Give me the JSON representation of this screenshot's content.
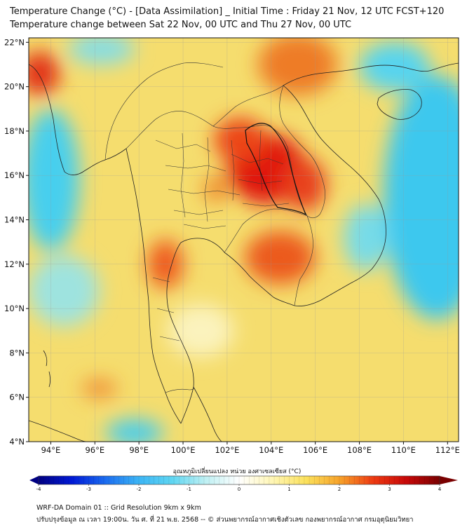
{
  "title": {
    "line1": "Temperature Change (°C) - [Data Assimilation] _ Initial Time : Friday 21 Nov, 12 UTC FCST+120",
    "line2": "Temperature change between Sat 22 Nov, 00 UTC and Thu 27 Nov, 00 UTC"
  },
  "map": {
    "lat_labels": [
      "4°N",
      "6°N",
      "8°N",
      "10°N",
      "12°N",
      "14°N",
      "16°N",
      "18°N",
      "20°N",
      "22°N"
    ],
    "lon_labels": [
      "94°E",
      "96°E",
      "98°E",
      "100°E",
      "102°E",
      "104°E",
      "106°E",
      "108°E",
      "110°E",
      "112°E"
    ],
    "lat_values": [
      4,
      6,
      8,
      10,
      12,
      14,
      16,
      18,
      20,
      22
    ],
    "lon_values": [
      94,
      96,
      98,
      100,
      102,
      104,
      106,
      108,
      110,
      112
    ],
    "extent": {
      "lon_min": 93,
      "lon_max": 112.5,
      "lat_min": 4,
      "lat_max": 22.2
    },
    "base_color": "#f5dd6e",
    "hotspots": [
      {
        "lon": 103.8,
        "lat": 16.3,
        "rx": 1.8,
        "ry": 1.6,
        "color": "#e0120e"
      },
      {
        "lon": 102.6,
        "lat": 17.6,
        "rx": 1.2,
        "ry": 1.0,
        "color": "#ec4518"
      },
      {
        "lon": 105.5,
        "lat": 15.6,
        "rx": 1.0,
        "ry": 1.2,
        "color": "#e8401a"
      },
      {
        "lon": 104.4,
        "lat": 12.3,
        "rx": 1.6,
        "ry": 1.2,
        "color": "#ec5a1c"
      },
      {
        "lon": 99.2,
        "lat": 12.0,
        "rx": 0.8,
        "ry": 1.1,
        "color": "#ee5a1c"
      },
      {
        "lon": 105.2,
        "lat": 21.0,
        "rx": 1.8,
        "ry": 1.4,
        "color": "#ee7b26"
      },
      {
        "lon": 93.5,
        "lat": 20.6,
        "rx": 0.9,
        "ry": 1.0,
        "color": "#e23316"
      },
      {
        "lon": 96.2,
        "lat": 6.4,
        "rx": 0.8,
        "ry": 0.4,
        "color": "#f08a30"
      },
      {
        "lon": 101.5,
        "lat": 15.4,
        "rx": 0.6,
        "ry": 0.6,
        "color": "#ef8c2e"
      }
    ],
    "coolspots": [
      {
        "lon": 94.0,
        "lat": 15.8,
        "rx": 1.3,
        "ry": 3.2,
        "color": "#46cfee"
      },
      {
        "lon": 111.5,
        "lat": 15.0,
        "rx": 2.4,
        "ry": 5.5,
        "color": "#3ec8ee"
      },
      {
        "lon": 109.6,
        "lat": 20.9,
        "rx": 1.6,
        "ry": 1.1,
        "color": "#56d4ef"
      },
      {
        "lon": 108.3,
        "lat": 13.2,
        "rx": 1.0,
        "ry": 1.5,
        "color": "#77dbe8"
      },
      {
        "lon": 97.8,
        "lat": 4.4,
        "rx": 1.3,
        "ry": 0.6,
        "color": "#46cdee"
      },
      {
        "lon": 94.6,
        "lat": 10.8,
        "rx": 1.6,
        "ry": 1.6,
        "color": "#9ee3df"
      },
      {
        "lon": 100.8,
        "lat": 9.0,
        "rx": 1.5,
        "ry": 1.2,
        "color": "#fbf3bd"
      },
      {
        "lon": 96.3,
        "lat": 21.7,
        "rx": 1.5,
        "ry": 0.7,
        "color": "#86dde3"
      }
    ]
  },
  "colorbar": {
    "title": "อุณหภูมิเปลี่ยนแปลง หน่วย องศาเซลเซียส (°C)",
    "tick_labels": [
      "-4",
      "-3",
      "-2",
      "-1",
      "0",
      "1",
      "2",
      "3",
      "4"
    ],
    "tick_values": [
      -4,
      -3,
      -2,
      -1,
      0,
      1,
      2,
      3,
      4
    ],
    "colors": [
      "#000082",
      "#0019d6",
      "#1b6cf0",
      "#3cb5f5",
      "#5fd6f2",
      "#bff0f3",
      "#ffffff",
      "#fff6b5",
      "#fbe15c",
      "#f7a32a",
      "#ee3b12",
      "#c80808",
      "#7a0000"
    ]
  },
  "footer": {
    "line1": "WRF-DA Domain 01 :: Grid Resolution 9km x 9km",
    "line2": "ปรับปรุงข้อมูล ณ เวลา 19:00น. วัน ศ. ที่ 21 พ.ย. 2568 -- © ส่วนพยากรณ์อากาศเชิงตัวเลข กองพยากรณ์อากาศ กรมอุตุนิยมวิทยา"
  }
}
